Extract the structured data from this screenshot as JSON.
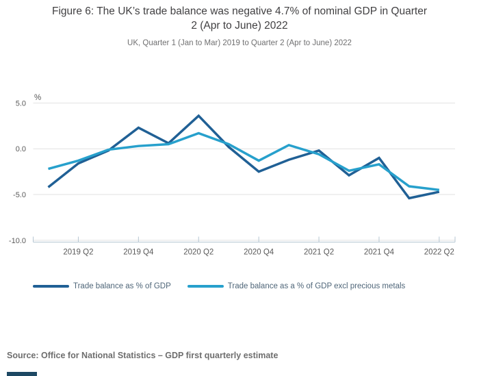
{
  "header": {
    "title": "Figure 6: The UK’s trade balance was negative 4.7% of nominal GDP in Quarter 2 (Apr to June) 2022",
    "subtitle": "UK, Quarter 1 (Jan to Mar) 2019 to Quarter 2 (Apr to June) 2022"
  },
  "chart_data": {
    "type": "line",
    "unit_label": "%",
    "categories": [
      "2019 Q1",
      "2019 Q2",
      "2019 Q3",
      "2019 Q4",
      "2020 Q1",
      "2020 Q2",
      "2020 Q3",
      "2020 Q4",
      "2021 Q1",
      "2021 Q2",
      "2021 Q3",
      "2021 Q4",
      "2022 Q1",
      "2022 Q2"
    ],
    "x_tick_labels": [
      "2019 Q2",
      "2019 Q4",
      "2020 Q2",
      "2020 Q4",
      "2021 Q2",
      "2021 Q4",
      "2022 Q2"
    ],
    "y_ticks": [
      5.0,
      0.0,
      -5.0,
      -10.0
    ],
    "y_tick_labels": [
      "5.0",
      "0.0",
      "-5.0",
      "-10.0"
    ],
    "ylim": [
      -10.0,
      5.0
    ],
    "grid": true,
    "legend_position": "bottom-left",
    "series": [
      {
        "name": "Trade balance as % of GDP",
        "color": "#206095",
        "values": [
          -4.2,
          -1.6,
          -0.2,
          2.3,
          0.6,
          3.6,
          0.2,
          -2.5,
          -1.2,
          -0.2,
          -2.9,
          -1.0,
          -5.4,
          -4.7
        ]
      },
      {
        "name": "Trade balance as a % of GDP excl precious metals",
        "color": "#27A0CC",
        "values": [
          -2.2,
          -1.3,
          -0.1,
          0.3,
          0.5,
          1.7,
          0.5,
          -1.3,
          0.4,
          -0.6,
          -2.4,
          -1.7,
          -4.1,
          -4.5
        ]
      }
    ]
  },
  "source": {
    "text": "Source: Office for National Statistics – GDP first quarterly estimate"
  },
  "colors": {
    "gridline": "#e1e1e1",
    "axis_line": "#b5c6d2",
    "axis_label": "#595959",
    "logo_bar": "#1d4863"
  }
}
